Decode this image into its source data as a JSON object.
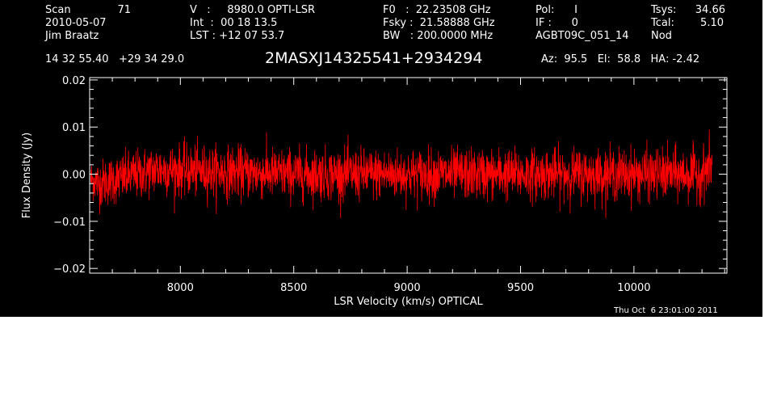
{
  "header": {
    "col1": {
      "scan_label": "Scan",
      "scan_value": "71",
      "date": "2010-05-07",
      "observer": "Jim Braatz"
    },
    "col2": {
      "line1": "V   :     8980.0 OPTI-LSR",
      "line2": "Int  :  00 18 13.5",
      "line3": "LST : +12 07 53.7"
    },
    "col3": {
      "line1": "F0   :  22.23508 GHz",
      "line2": "Fsky :  21.58888 GHz",
      "line3": "BW   : 200.0000 MHz"
    },
    "col4": {
      "line1": "Pol:      I",
      "line2": "IF :      0",
      "line3": "AGBT09C_051_14"
    },
    "col5": {
      "tsys_label": "Tsys:",
      "tsys_value": "34.66",
      "tcal_label": "Tcal:",
      "tcal_value": "5.10",
      "mode": "Nod"
    },
    "coords": "14 32 55.40   +29 34 29.0",
    "source": "2MASXJ14325541+2934294",
    "pointing": "Az:  95.5   El:  58.8   HA: -2.42"
  },
  "timestamp": "Thu Oct  6 23:01:00 2011",
  "chart_data": {
    "type": "line",
    "xlabel": "LSR Velocity (km/s) OPTICAL",
    "ylabel": "Flux Density (Jy)",
    "xlim": [
      7600,
      10410
    ],
    "ylim": [
      -0.021,
      0.0205
    ],
    "x_ticks": [
      8000,
      8500,
      9000,
      9500,
      10000
    ],
    "x_tick_labels": [
      "8000",
      "8500",
      "9000",
      "9500",
      "10000"
    ],
    "y_ticks": [
      -0.02,
      -0.01,
      0.0,
      0.01,
      0.02
    ],
    "y_tick_labels": [
      "−0.02",
      "−0.01",
      "0.00",
      "0.01",
      "0.02"
    ],
    "grid": false,
    "series": [
      {
        "color": "#ff0000",
        "x_range": [
          7605,
          10345
        ],
        "envelope_x": [
          7605,
          7640,
          7900,
          8500,
          9000,
          9500,
          10000,
          10300,
          10320,
          10345
        ],
        "center": [
          -0.001,
          -0.002,
          0.001,
          0.0,
          0.0,
          0.0,
          0.0,
          0.0,
          0.001,
          0.002
        ],
        "upper": [
          0.001,
          0.006,
          0.008,
          0.008,
          0.008,
          0.008,
          0.008,
          0.008,
          0.01,
          0.015
        ],
        "lower": [
          -0.011,
          -0.009,
          -0.008,
          -0.008,
          -0.008,
          -0.008,
          -0.008,
          -0.008,
          -0.007,
          -0.001
        ]
      }
    ]
  }
}
